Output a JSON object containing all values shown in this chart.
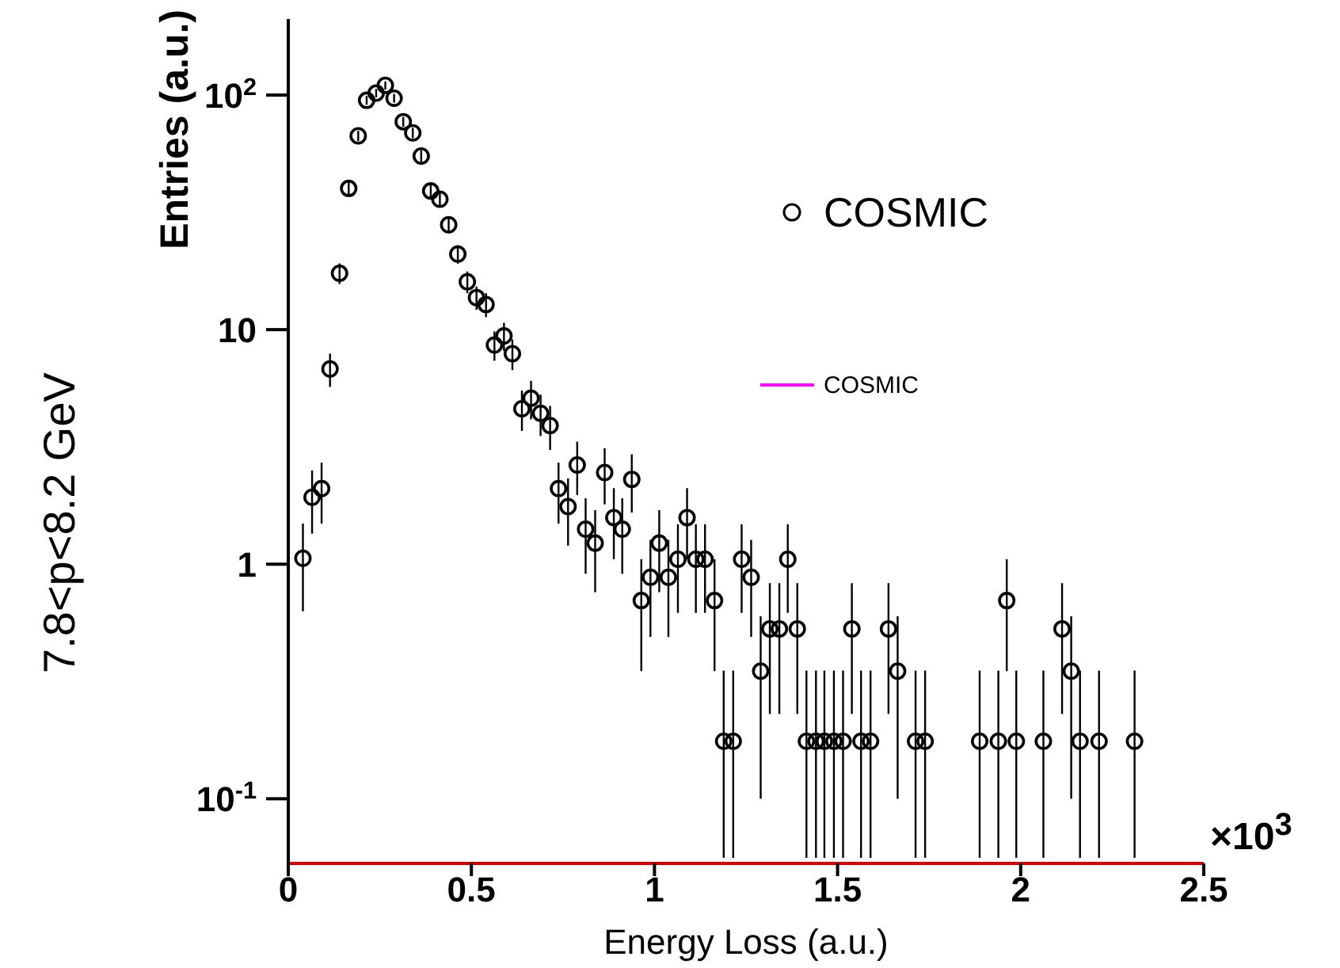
{
  "chart_data": {
    "type": "scatter",
    "xlabel": "Energy Loss (a.u.)",
    "ylabel": "Entries (a.u.)",
    "annotations": [
      "×10$^{3}$",
      "7.8<p<8.2 GeV"
    ],
    "x": [
      0.04,
      0.065,
      0.091,
      0.114,
      0.14,
      0.165,
      0.191,
      0.214,
      0.24,
      0.265,
      0.289,
      0.314,
      0.34,
      0.363,
      0.389,
      0.414,
      0.438,
      0.463,
      0.489,
      0.514,
      0.54,
      0.563,
      0.589,
      0.612,
      0.638,
      0.663,
      0.689,
      0.715,
      0.738,
      0.764,
      0.789,
      0.812,
      0.838,
      0.864,
      0.889,
      0.912,
      0.938,
      0.964,
      0.989,
      1.013,
      1.038,
      1.064,
      1.089,
      1.113,
      1.138,
      1.164,
      1.189,
      1.215,
      1.238,
      1.264,
      1.29,
      1.315,
      1.341,
      1.364,
      1.39,
      1.415,
      1.441,
      1.464,
      1.49,
      1.515,
      1.539,
      1.564,
      1.59,
      1.639,
      1.664,
      1.713,
      1.739,
      1.888,
      1.939,
      1.962,
      1.988,
      2.062,
      2.113,
      2.138,
      2.162,
      2.214,
      2.311
    ],
    "series": [
      {
        "name": "COSMIC",
        "color": "#000000",
        "values": [
          1.06,
          1.93,
          2.1,
          6.8,
          17.4,
          40,
          67,
          95,
          102,
          110,
          97,
          77,
          69,
          55,
          39,
          36,
          28,
          21,
          16,
          13.7,
          12.8,
          8.6,
          9.4,
          7.9,
          4.6,
          5.1,
          4.4,
          3.9,
          2.1,
          1.76,
          2.65,
          1.41,
          1.23,
          2.46,
          1.58,
          1.41,
          2.3,
          0.7,
          0.88,
          1.23,
          0.88,
          1.05,
          1.58,
          1.05,
          1.05,
          0.7,
          0.176,
          0.176,
          1.05,
          0.88,
          0.35,
          0.53,
          0.53,
          1.05,
          0.53,
          0.176,
          0.176,
          0.176,
          0.176,
          0.176,
          0.53,
          0.176,
          0.176,
          0.53,
          0.35,
          0.176,
          0.176,
          0.176,
          0.176,
          0.7,
          0.176,
          0.176,
          0.53,
          0.35,
          0.176,
          0.176,
          0.176
        ],
        "errors": [
          0.43,
          0.58,
          0.61,
          1.1,
          1.75,
          2.65,
          3.4,
          4.1,
          4.2,
          4.4,
          4.1,
          3.7,
          3.5,
          3.1,
          2.6,
          2.5,
          2.2,
          1.9,
          1.7,
          1.55,
          1.5,
          1.23,
          1.29,
          1.18,
          0.9,
          0.95,
          0.88,
          0.83,
          0.61,
          0.56,
          0.68,
          0.5,
          0.47,
          0.66,
          0.53,
          0.5,
          0.64,
          0.35,
          0.39,
          0.47,
          0.39,
          0.43,
          0.53,
          0.43,
          0.43,
          0.35,
          [
            0.056,
            0.352
          ],
          [
            0.056,
            0.352
          ],
          0.43,
          0.39,
          0.25,
          0.3,
          0.3,
          0.43,
          0.3,
          [
            0.056,
            0.352
          ],
          [
            0.056,
            0.352
          ],
          [
            0.056,
            0.352
          ],
          [
            0.056,
            0.352
          ],
          [
            0.056,
            0.352
          ],
          0.3,
          [
            0.056,
            0.352
          ],
          [
            0.056,
            0.352
          ],
          0.3,
          0.25,
          [
            0.056,
            0.352
          ],
          [
            0.056,
            0.352
          ],
          [
            0.056,
            0.352
          ],
          [
            0.056,
            0.352
          ],
          0.35,
          [
            0.056,
            0.352
          ],
          [
            0.056,
            0.352
          ],
          0.3,
          0.25,
          [
            0.056,
            0.352
          ],
          [
            0.056,
            0.352
          ],
          [
            0.056,
            0.352
          ]
        ]
      },
      {
        "name": "COSMIC",
        "type": "line",
        "color": "#ff00ff",
        "values": [
          null,
          null,
          null,
          null,
          null,
          null,
          null,
          null,
          null,
          null,
          null,
          null,
          null,
          null,
          null,
          null,
          null,
          null,
          null,
          null,
          null,
          null,
          null,
          null,
          null,
          null,
          null,
          null,
          null,
          null,
          null,
          null,
          null,
          null,
          null,
          null,
          null,
          null,
          null,
          null,
          null,
          null,
          null,
          null,
          null,
          null,
          null,
          null,
          null,
          null,
          null,
          null,
          null,
          null,
          null,
          null,
          null,
          null,
          null,
          null,
          null,
          null,
          null,
          null,
          null,
          null,
          null,
          null,
          null,
          null,
          null,
          null,
          null,
          null,
          null,
          null,
          null
        ]
      }
    ],
    "xlim": [
      0,
      2.5
    ],
    "xticks": [
      0,
      0.5,
      1,
      1.5,
      2,
      2.5
    ],
    "ylim": [
      0.053,
      211
    ],
    "yticks": [
      {
        "value": 0.1,
        "label": "10$^{-1}$"
      },
      1,
      10,
      {
        "value": 100,
        "label": "10$^{2}$"
      }
    ],
    "log": "y",
    "marker": "circle",
    "legend": "top right"
  }
}
